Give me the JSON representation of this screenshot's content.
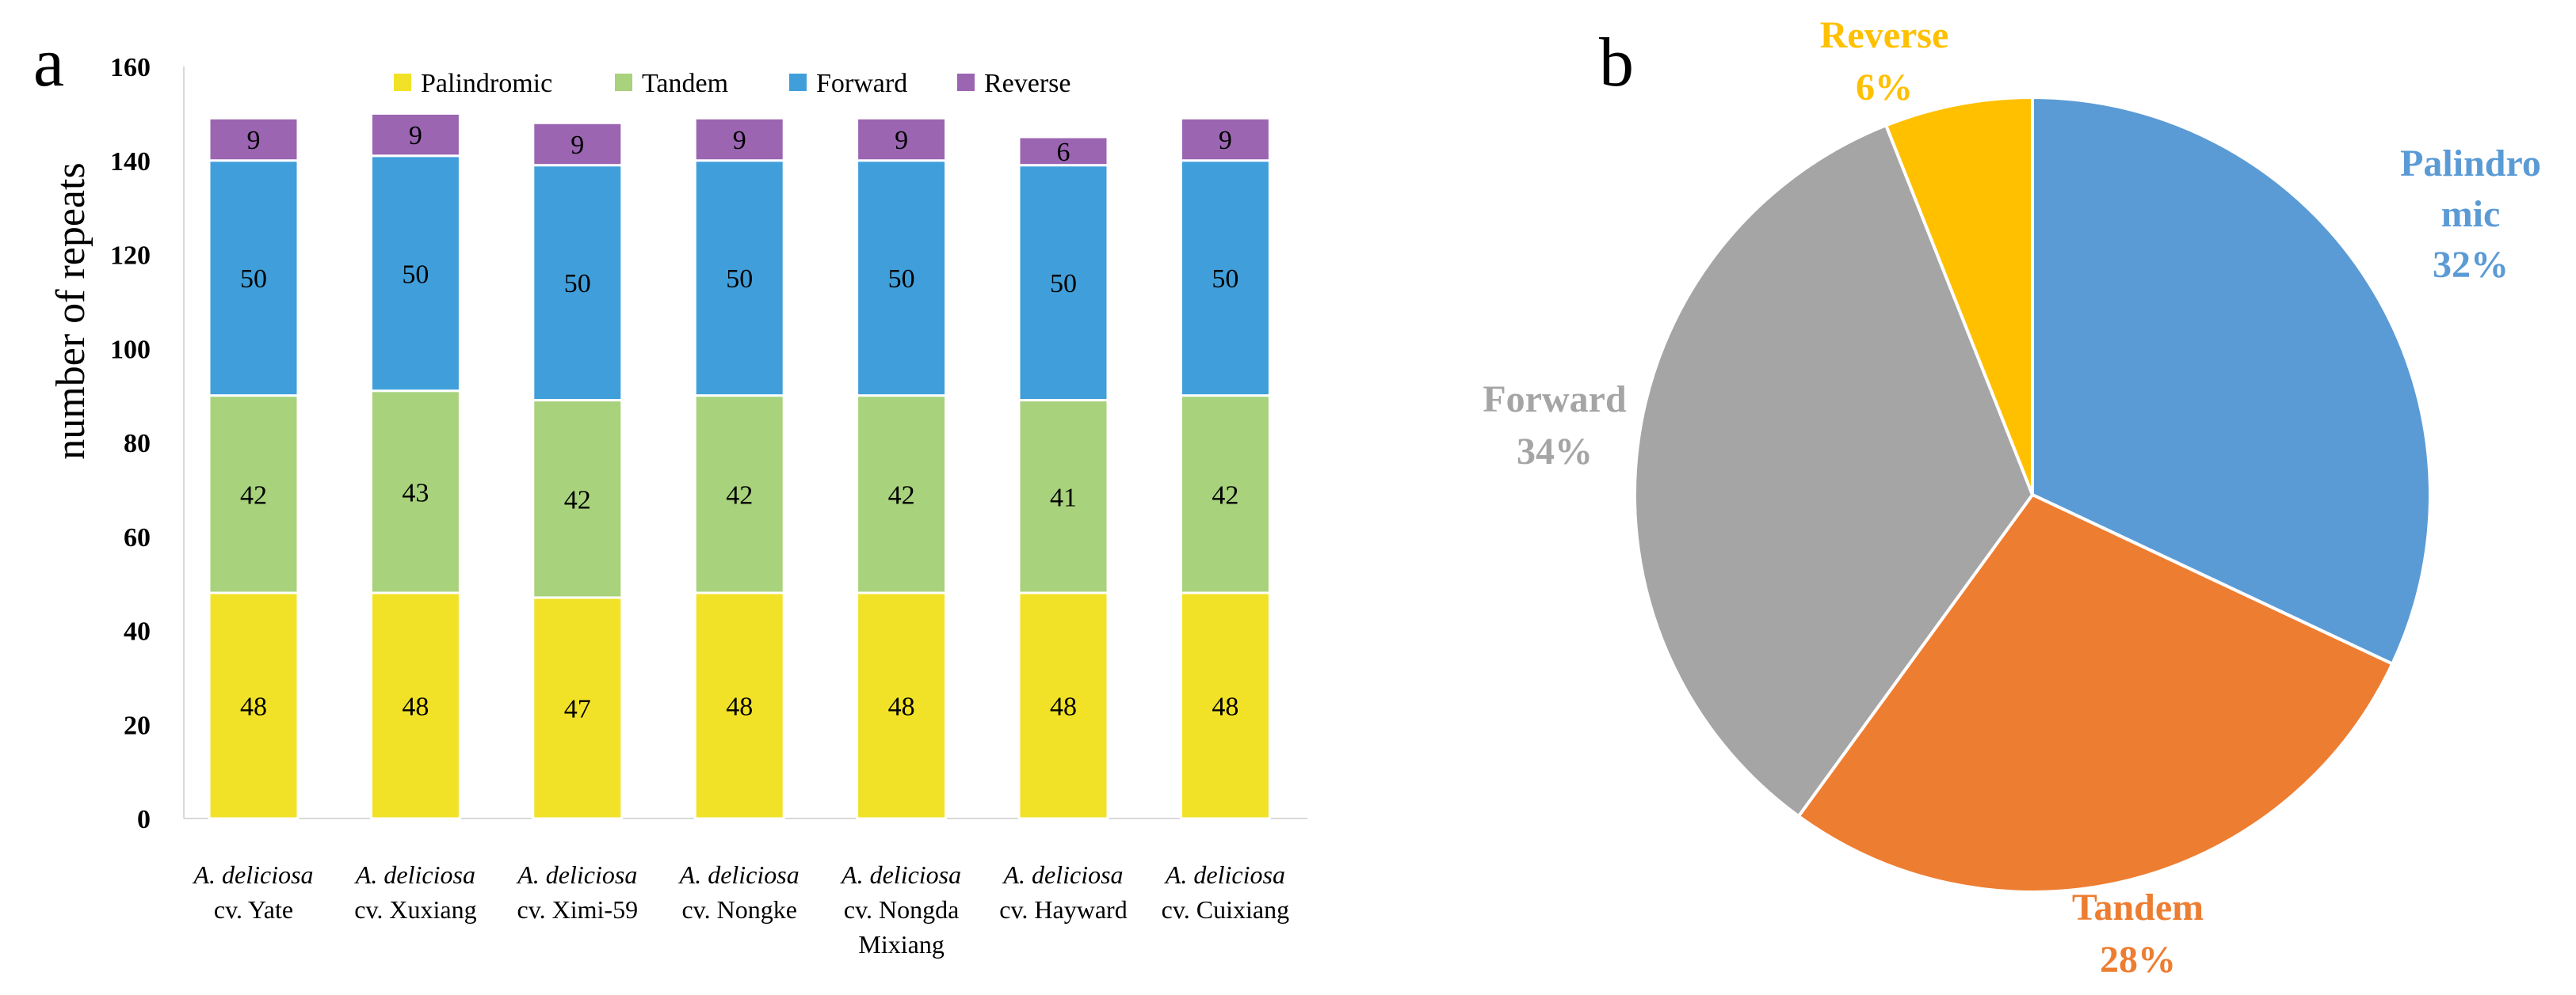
{
  "panels": {
    "a": "a",
    "b": "b"
  },
  "colors": {
    "palindromic_bar": "#F2E227",
    "tandem_bar": "#A8D27C",
    "forward_bar": "#409FDB",
    "reverse_bar": "#9B65B2",
    "pie_palindromic": "#5B9BD5",
    "pie_tandem": "#ED7D31",
    "pie_forward": "#A5A5A5",
    "pie_reverse": "#FFC000"
  },
  "chart_data": [
    {
      "type": "bar",
      "stacked": true,
      "title": "",
      "xlabel": "",
      "ylabel": "number of repeats",
      "ylim": [
        0,
        160
      ],
      "yticks": [
        0,
        20,
        40,
        60,
        80,
        100,
        120,
        140,
        160
      ],
      "legend_position": "top",
      "categories": [
        [
          "A. deliciosa",
          "cv. Yate"
        ],
        [
          "A. deliciosa",
          "cv. Xuxiang"
        ],
        [
          "A. deliciosa",
          "cv. Ximi-59"
        ],
        [
          "A. deliciosa",
          "cv. Nongke"
        ],
        [
          "A. deliciosa",
          "cv. Nongda",
          "Mixiang"
        ],
        [
          "A. deliciosa",
          "cv. Hayward"
        ],
        [
          "A. deliciosa",
          "cv. Cuixiang"
        ]
      ],
      "series": [
        {
          "name": "Palindromic",
          "color": "#F2E227",
          "values": [
            48,
            48,
            47,
            48,
            48,
            48,
            48
          ]
        },
        {
          "name": "Tandem",
          "color": "#A8D27C",
          "values": [
            42,
            43,
            42,
            42,
            42,
            41,
            42
          ]
        },
        {
          "name": "Forward",
          "color": "#409FDB",
          "values": [
            50,
            50,
            50,
            50,
            50,
            50,
            50
          ]
        },
        {
          "name": "Reverse",
          "color": "#9B65B2",
          "values": [
            9,
            9,
            9,
            9,
            9,
            6,
            9
          ]
        }
      ]
    },
    {
      "type": "pie",
      "title": "",
      "slices": [
        {
          "name": "Palindromic",
          "label_lines": [
            "Palindro",
            "mic"
          ],
          "value": 32,
          "pct_label": "32%",
          "color": "#5B9BD5"
        },
        {
          "name": "Tandem",
          "label_lines": [
            "Tandem"
          ],
          "value": 28,
          "pct_label": "28%",
          "color": "#ED7D31"
        },
        {
          "name": "Forward",
          "label_lines": [
            "Forward"
          ],
          "value": 34,
          "pct_label": "34%",
          "color": "#A5A5A5"
        },
        {
          "name": "Reverse",
          "label_lines": [
            "Reverse"
          ],
          "value": 6,
          "pct_label": "6%",
          "color": "#FFC000"
        }
      ]
    }
  ]
}
